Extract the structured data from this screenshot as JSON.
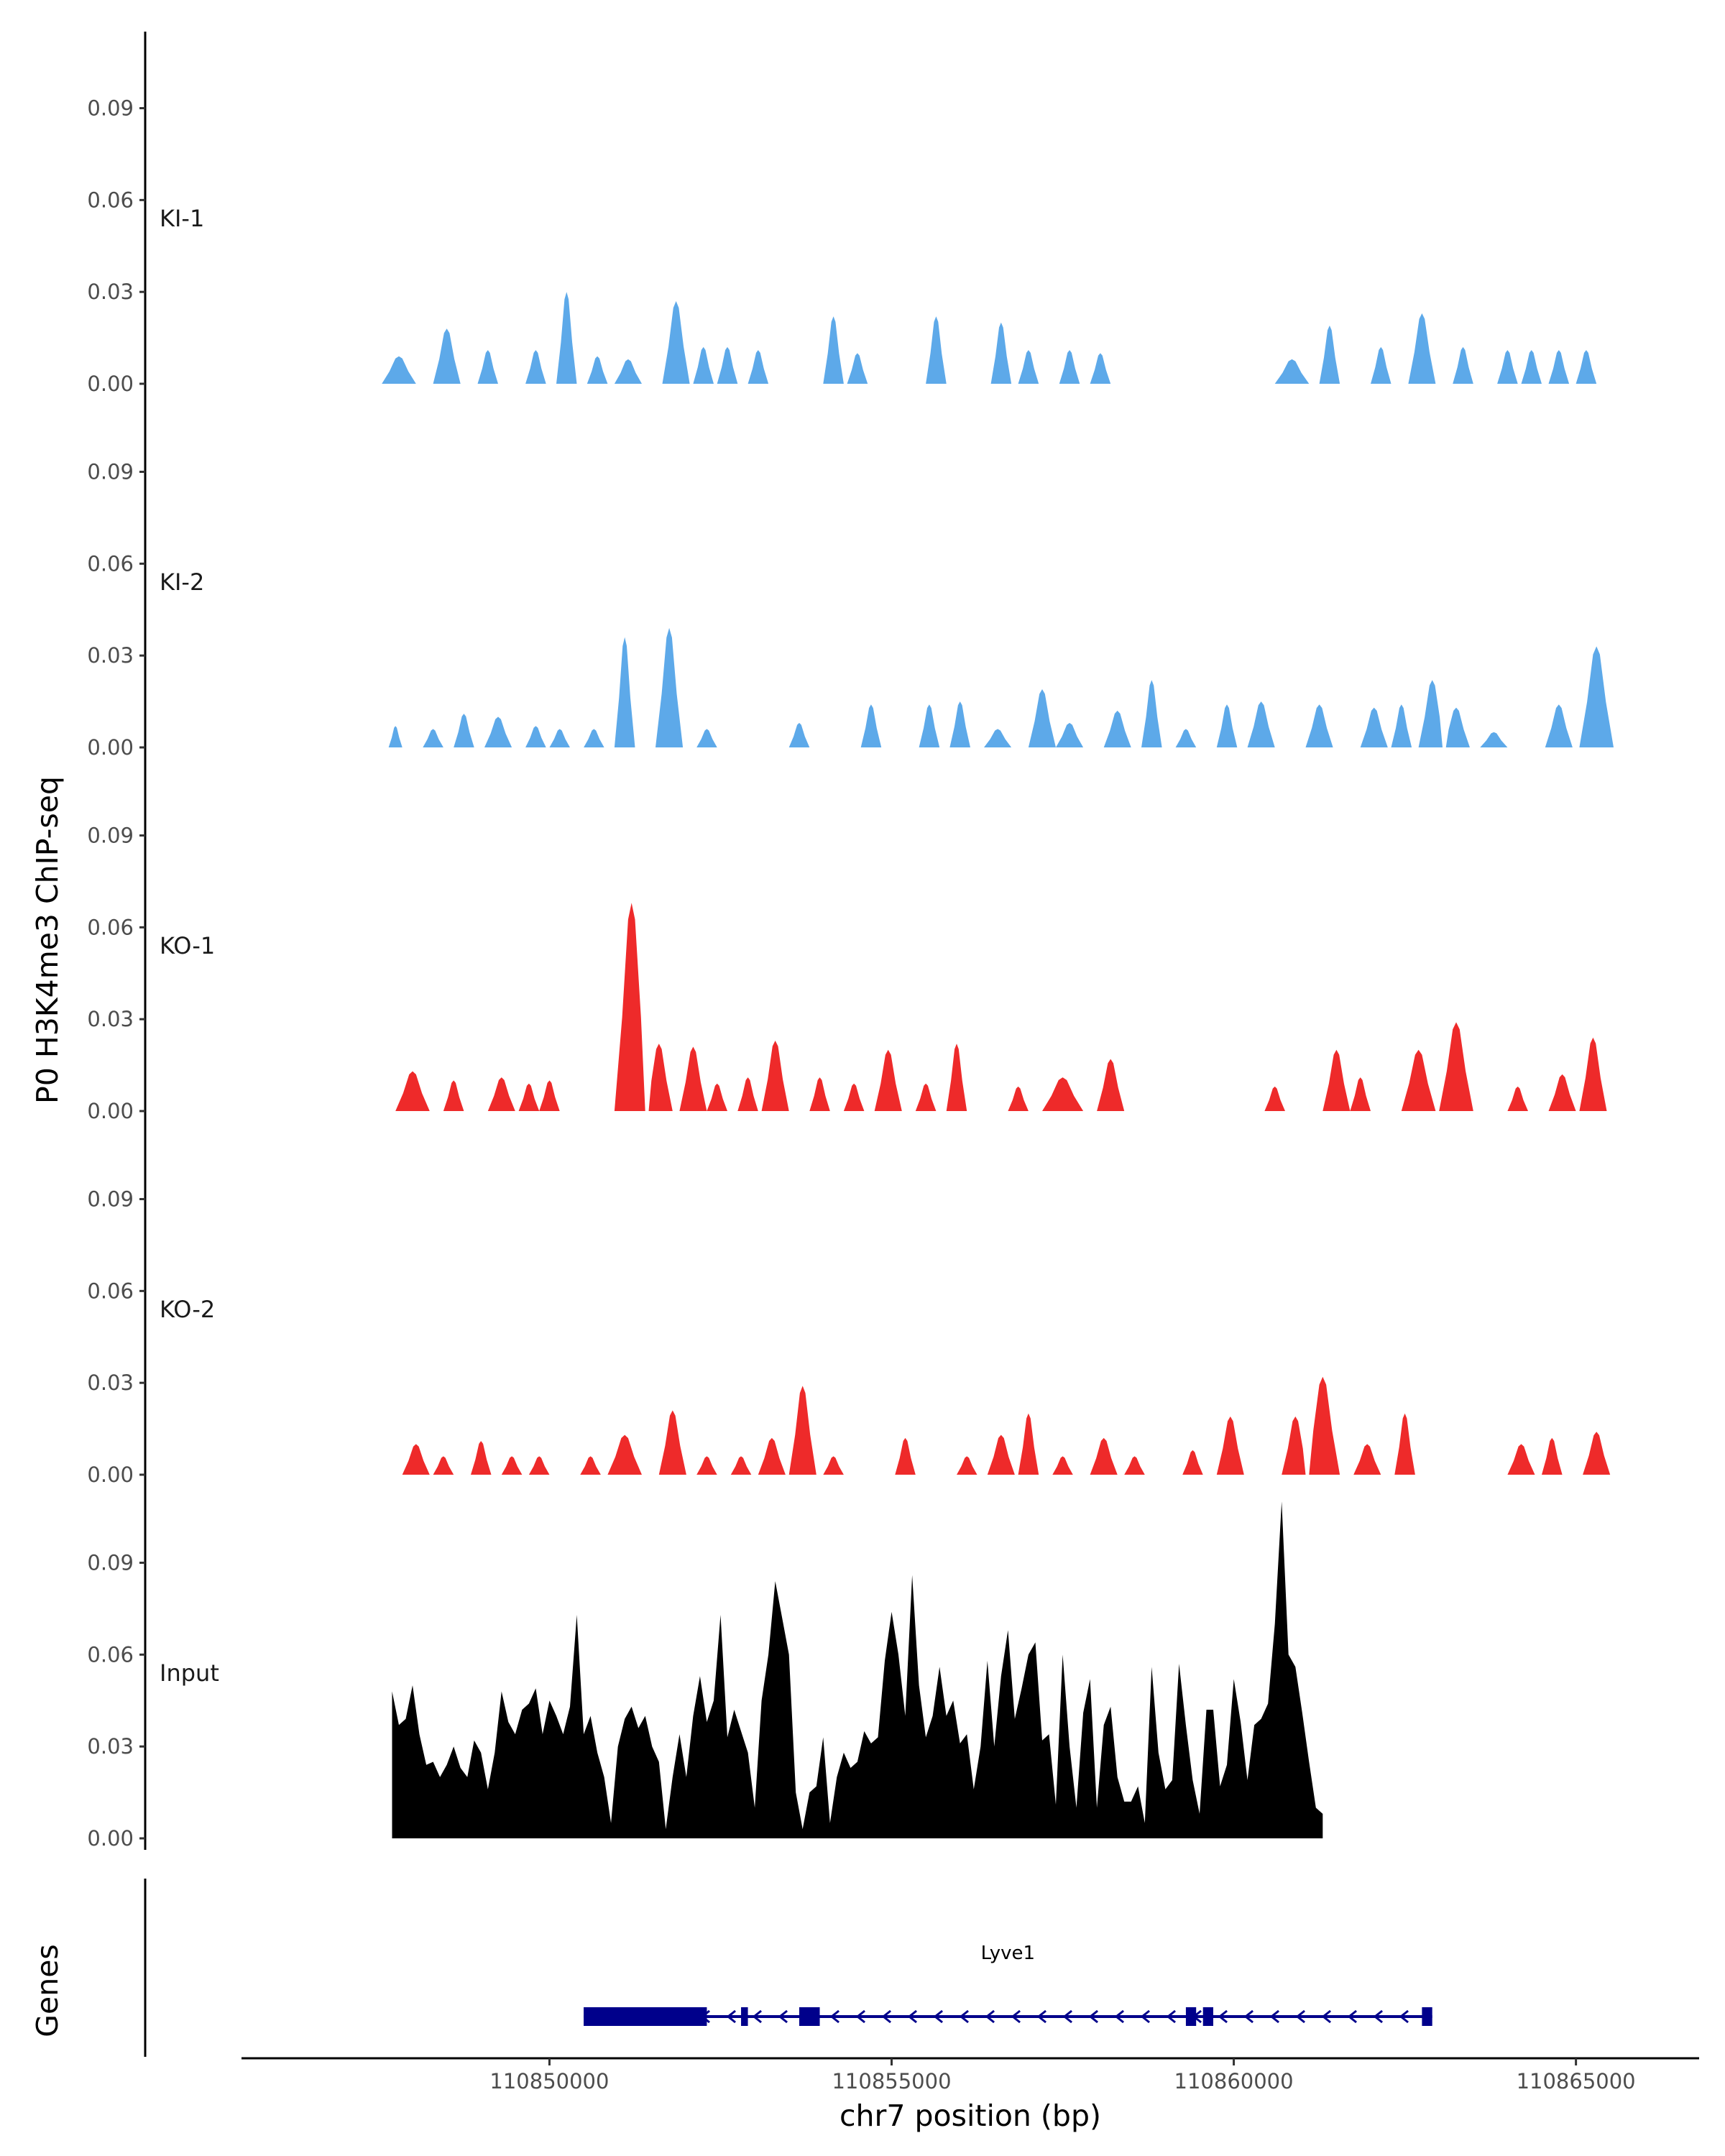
{
  "chart_data": {
    "type": "area",
    "ylabel": "P0 H3K4me3 ChIP-seq",
    "xlabel": "chr7 position (bp)",
    "genes_label": "Genes",
    "xlim": [
      110845500,
      110866800
    ],
    "ylim": [
      0,
      0.115
    ],
    "y_ticks": [
      "0.00",
      "0.03",
      "0.06",
      "0.09"
    ],
    "x_ticks": [
      {
        "value": 110850000,
        "label": "110850000"
      },
      {
        "value": 110855000,
        "label": "110855000"
      },
      {
        "value": 110860000,
        "label": "110860000"
      },
      {
        "value": 110865000,
        "label": "110865000"
      }
    ],
    "tracks": [
      {
        "label": "KI-1",
        "color": "#5DA9E9",
        "peaks": [
          [
            110847800,
            0.009,
            250
          ],
          [
            110848500,
            0.018,
            200
          ],
          [
            110849100,
            0.011,
            150
          ],
          [
            110849800,
            0.011,
            150
          ],
          [
            110850250,
            0.03,
            150
          ],
          [
            110850700,
            0.009,
            150
          ],
          [
            110851150,
            0.008,
            200
          ],
          [
            110851850,
            0.027,
            200
          ],
          [
            110852250,
            0.012,
            150
          ],
          [
            110852600,
            0.012,
            150
          ],
          [
            110853050,
            0.011,
            150
          ],
          [
            110854150,
            0.022,
            150
          ],
          [
            110854500,
            0.01,
            150
          ],
          [
            110855650,
            0.022,
            150
          ],
          [
            110856600,
            0.02,
            150
          ],
          [
            110857000,
            0.011,
            150
          ],
          [
            110857600,
            0.011,
            150
          ],
          [
            110858050,
            0.01,
            150
          ],
          [
            110860850,
            0.008,
            250
          ],
          [
            110861400,
            0.019,
            150
          ],
          [
            110862150,
            0.012,
            150
          ],
          [
            110862750,
            0.023,
            200
          ],
          [
            110863350,
            0.012,
            150
          ],
          [
            110864000,
            0.011,
            150
          ],
          [
            110864350,
            0.011,
            150
          ],
          [
            110864750,
            0.011,
            150
          ],
          [
            110865150,
            0.011,
            150
          ]
        ]
      },
      {
        "label": "KI-2",
        "color": "#5DA9E9",
        "peaks": [
          [
            110847750,
            0.007,
            100
          ],
          [
            110848300,
            0.006,
            150
          ],
          [
            110848750,
            0.011,
            150
          ],
          [
            110849250,
            0.01,
            200
          ],
          [
            110849800,
            0.007,
            150
          ],
          [
            110850150,
            0.006,
            150
          ],
          [
            110850650,
            0.006,
            150
          ],
          [
            110851100,
            0.036,
            150
          ],
          [
            110851750,
            0.039,
            200
          ],
          [
            110852300,
            0.006,
            150
          ],
          [
            110853650,
            0.008,
            150
          ],
          [
            110854700,
            0.014,
            150
          ],
          [
            110855550,
            0.014,
            150
          ],
          [
            110856000,
            0.015,
            150
          ],
          [
            110856550,
            0.006,
            200
          ],
          [
            110857200,
            0.019,
            200
          ],
          [
            110857600,
            0.008,
            200
          ],
          [
            110858300,
            0.012,
            200
          ],
          [
            110858800,
            0.022,
            150
          ],
          [
            110859300,
            0.006,
            150
          ],
          [
            110859900,
            0.014,
            150
          ],
          [
            110860400,
            0.015,
            200
          ],
          [
            110861250,
            0.014,
            200
          ],
          [
            110862050,
            0.013,
            200
          ],
          [
            110862450,
            0.014,
            150
          ],
          [
            110862900,
            0.022,
            200
          ],
          [
            110863250,
            0.013,
            200
          ],
          [
            110863800,
            0.005,
            200
          ],
          [
            110864750,
            0.014,
            200
          ],
          [
            110865300,
            0.033,
            250
          ]
        ]
      },
      {
        "label": "KO-1",
        "color": "#EE2A2A",
        "peaks": [
          [
            110848000,
            0.013,
            250
          ],
          [
            110848600,
            0.01,
            150
          ],
          [
            110849300,
            0.011,
            200
          ],
          [
            110849700,
            0.009,
            150
          ],
          [
            110850000,
            0.01,
            150
          ],
          [
            110851200,
            0.068,
            250
          ],
          [
            110851600,
            0.022,
            200
          ],
          [
            110852100,
            0.021,
            200
          ],
          [
            110852450,
            0.009,
            150
          ],
          [
            110852900,
            0.011,
            150
          ],
          [
            110853300,
            0.023,
            200
          ],
          [
            110853950,
            0.011,
            150
          ],
          [
            110854450,
            0.009,
            150
          ],
          [
            110854950,
            0.02,
            200
          ],
          [
            110855500,
            0.009,
            150
          ],
          [
            110855950,
            0.022,
            150
          ],
          [
            110856850,
            0.008,
            150
          ],
          [
            110857500,
            0.011,
            300
          ],
          [
            110858200,
            0.017,
            200
          ],
          [
            110860600,
            0.008,
            150
          ],
          [
            110861500,
            0.02,
            200
          ],
          [
            110861850,
            0.011,
            150
          ],
          [
            110862700,
            0.02,
            250
          ],
          [
            110863250,
            0.029,
            250
          ],
          [
            110864150,
            0.008,
            150
          ],
          [
            110864800,
            0.012,
            200
          ],
          [
            110865250,
            0.024,
            200
          ]
        ]
      },
      {
        "label": "KO-2",
        "color": "#EE2A2A",
        "peaks": [
          [
            110848050,
            0.01,
            200
          ],
          [
            110848450,
            0.006,
            150
          ],
          [
            110849000,
            0.011,
            150
          ],
          [
            110849450,
            0.006,
            150
          ],
          [
            110849850,
            0.006,
            150
          ],
          [
            110850600,
            0.006,
            150
          ],
          [
            110851100,
            0.013,
            250
          ],
          [
            110851800,
            0.021,
            200
          ],
          [
            110852300,
            0.006,
            150
          ],
          [
            110852800,
            0.006,
            150
          ],
          [
            110853250,
            0.012,
            200
          ],
          [
            110853700,
            0.029,
            200
          ],
          [
            110854150,
            0.006,
            150
          ],
          [
            110855200,
            0.012,
            150
          ],
          [
            110856100,
            0.006,
            150
          ],
          [
            110856600,
            0.013,
            200
          ],
          [
            110857000,
            0.02,
            150
          ],
          [
            110857500,
            0.006,
            150
          ],
          [
            110858100,
            0.012,
            200
          ],
          [
            110858550,
            0.006,
            150
          ],
          [
            110859400,
            0.008,
            150
          ],
          [
            110859950,
            0.019,
            200
          ],
          [
            110860900,
            0.019,
            200
          ],
          [
            110861300,
            0.032,
            250
          ],
          [
            110861950,
            0.01,
            200
          ],
          [
            110862500,
            0.02,
            150
          ],
          [
            110864200,
            0.01,
            200
          ],
          [
            110864650,
            0.012,
            150
          ],
          [
            110865300,
            0.014,
            200
          ]
        ]
      },
      {
        "label": "Input",
        "color": "#000000",
        "x_start": 110847700,
        "x_step": 100,
        "values": [
          0.048,
          0.037,
          0.039,
          0.05,
          0.034,
          0.024,
          0.025,
          0.02,
          0.024,
          0.03,
          0.023,
          0.02,
          0.032,
          0.028,
          0.016,
          0.028,
          0.048,
          0.038,
          0.034,
          0.042,
          0.044,
          0.049,
          0.034,
          0.045,
          0.04,
          0.034,
          0.043,
          0.073,
          0.034,
          0.04,
          0.028,
          0.02,
          0.005,
          0.03,
          0.039,
          0.043,
          0.036,
          0.04,
          0.03,
          0.025,
          0.003,
          0.02,
          0.034,
          0.02,
          0.04,
          0.053,
          0.038,
          0.045,
          0.073,
          0.033,
          0.042,
          0.035,
          0.028,
          0.01,
          0.045,
          0.06,
          0.084,
          0.072,
          0.06,
          0.015,
          0.003,
          0.015,
          0.017,
          0.033,
          0.005,
          0.02,
          0.028,
          0.023,
          0.025,
          0.035,
          0.031,
          0.033,
          0.058,
          0.074,
          0.06,
          0.04,
          0.086,
          0.05,
          0.033,
          0.04,
          0.056,
          0.04,
          0.045,
          0.031,
          0.034,
          0.016,
          0.03,
          0.058,
          0.03,
          0.053,
          0.068,
          0.039,
          0.049,
          0.06,
          0.064,
          0.032,
          0.034,
          0.011,
          0.06,
          0.03,
          0.01,
          0.041,
          0.052,
          0.01,
          0.037,
          0.043,
          0.02,
          0.012,
          0.012,
          0.017,
          0.005,
          0.056,
          0.028,
          0.016,
          0.019,
          0.057,
          0.037,
          0.019,
          0.008,
          0.042,
          0.042,
          0.017,
          0.024,
          0.052,
          0.038,
          0.019,
          0.037,
          0.039,
          0.044,
          0.07,
          0.11,
          0.06,
          0.056,
          0.041,
          0.025,
          0.01,
          0.008
        ]
      }
    ],
    "gene": {
      "name": "Lyve1",
      "color": "#00008B",
      "strand": "-",
      "start": 110850500,
      "end": 110862900,
      "exons": [
        [
          110850500,
          110852300
        ],
        [
          110852800,
          110852900
        ],
        [
          110853650,
          110853950
        ],
        [
          110859300,
          110859450
        ],
        [
          110859550,
          110859700
        ],
        [
          110862750,
          110862900
        ]
      ]
    }
  }
}
